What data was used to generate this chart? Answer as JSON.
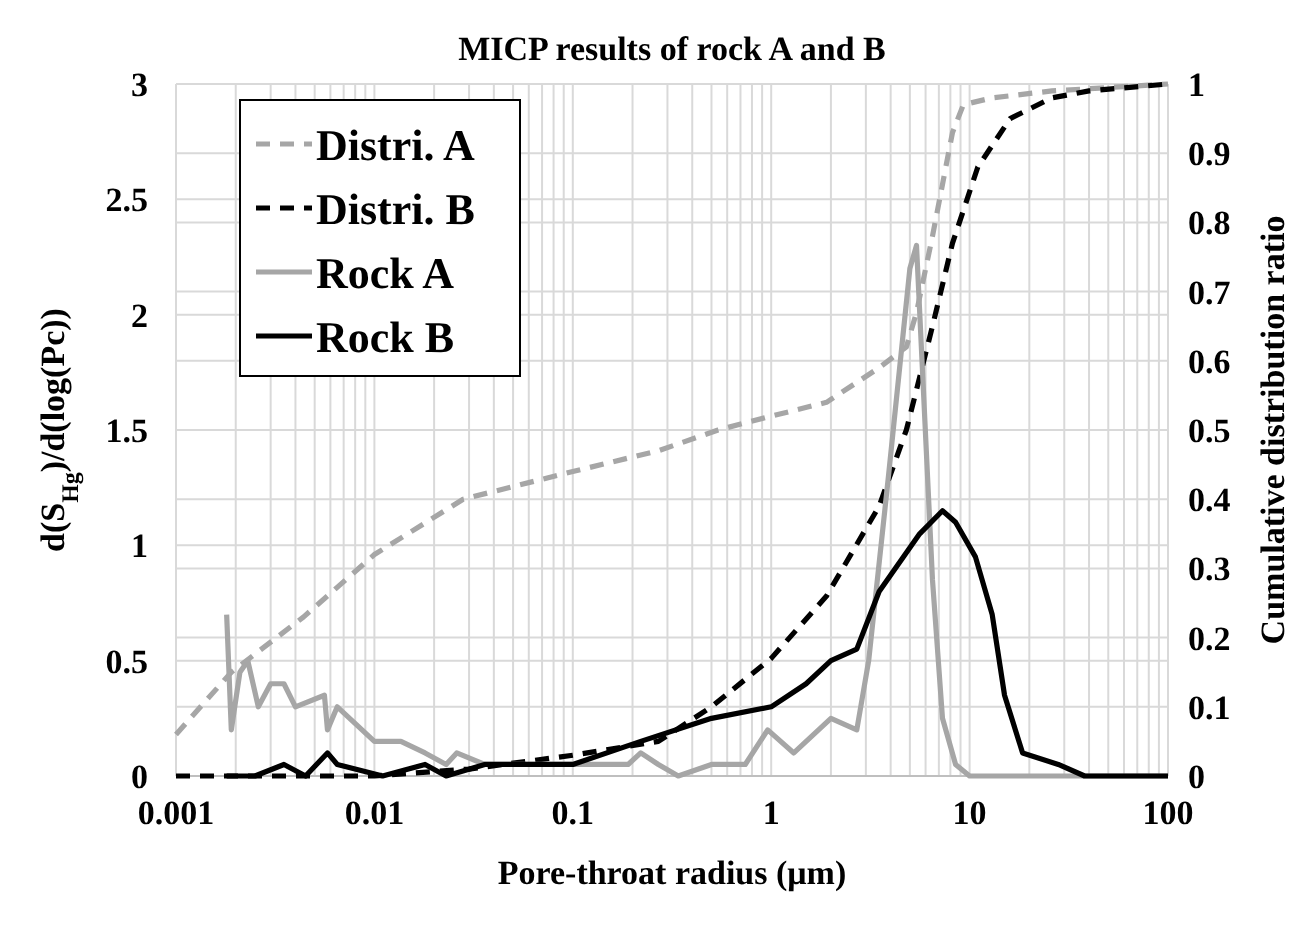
{
  "chart_data": {
    "type": "line",
    "title": "MICP results of rock A and B",
    "xlabel": "Pore-throat radius (μm)",
    "ylabel": "d(S$_{Hg}$)/d(log(Pc))",
    "y2label": "Cumulative distribution ratio",
    "log": "x",
    "grid": true,
    "legend": "top left",
    "xlim": [
      0.001,
      100
    ],
    "xticks": [
      0.001,
      {
        "value": 0.002,
        "label": null
      },
      {
        "value": 0.003,
        "label": null
      },
      {
        "value": 0.004,
        "label": null
      },
      {
        "value": 0.005,
        "label": null
      },
      {
        "value": 0.006,
        "label": null
      },
      {
        "value": 0.007,
        "label": null
      },
      {
        "value": 0.008,
        "label": null
      },
      {
        "value": 0.009,
        "label": null
      },
      0.01,
      {
        "value": 0.02,
        "label": null
      },
      {
        "value": 0.03,
        "label": null
      },
      {
        "value": 0.04,
        "label": null
      },
      {
        "value": 0.05,
        "label": null
      },
      {
        "value": 0.06,
        "label": null
      },
      {
        "value": 0.07,
        "label": null
      },
      {
        "value": 0.08,
        "label": null
      },
      {
        "value": 0.09,
        "label": null
      },
      0.1,
      {
        "value": 0.2,
        "label": null
      },
      {
        "value": 0.3,
        "label": null
      },
      {
        "value": 0.4,
        "label": null
      },
      {
        "value": 0.5,
        "label": null
      },
      {
        "value": 0.6,
        "label": null
      },
      {
        "value": 0.7,
        "label": null
      },
      {
        "value": 0.8,
        "label": null
      },
      {
        "value": 0.9,
        "label": null
      },
      1,
      {
        "value": 2,
        "label": null
      },
      {
        "value": 3,
        "label": null
      },
      {
        "value": 4,
        "label": null
      },
      {
        "value": 5,
        "label": null
      },
      {
        "value": 6,
        "label": null
      },
      {
        "value": 7,
        "label": null
      },
      {
        "value": 8,
        "label": null
      },
      {
        "value": 9,
        "label": null
      },
      10,
      {
        "value": 20,
        "label": null
      },
      {
        "value": 30,
        "label": null
      },
      {
        "value": 40,
        "label": null
      },
      {
        "value": 50,
        "label": null
      },
      {
        "value": 60,
        "label": null
      },
      {
        "value": 70,
        "label": null
      },
      {
        "value": 80,
        "label": null
      },
      {
        "value": 90,
        "label": null
      },
      100
    ],
    "ylim": [
      0,
      3
    ],
    "yticks": [
      0,
      0.5,
      1,
      1.5,
      2,
      2.5,
      3
    ],
    "y2lim": [
      0,
      1
    ],
    "y2ticks": [
      0,
      0.1,
      0.2,
      0.3,
      0.4,
      0.5,
      0.6,
      0.7,
      0.8,
      0.9,
      1
    ],
    "series": [
      {
        "name": "Distri. A",
        "color": "#a6a6a6",
        "axis": "y2",
        "line_style": "dashed",
        "x": [
          0.001,
          0.0019,
          0.0044,
          0.01,
          0.028,
          0.1,
          0.27,
          0.54,
          1,
          1.9,
          3.5,
          4.8,
          5.4,
          6.5,
          8.2,
          9.3,
          13,
          26,
          100
        ],
        "values": [
          0.06,
          0.15,
          0.23,
          0.32,
          0.4,
          0.44,
          0.47,
          0.5,
          0.52,
          0.54,
          0.59,
          0.62,
          0.67,
          0.78,
          0.93,
          0.97,
          0.98,
          0.99,
          1
        ]
      },
      {
        "name": "Distri. B",
        "color": "#000000",
        "axis": "y2",
        "line_style": "dashed",
        "x": [
          0.001,
          0.003,
          0.01,
          0.03,
          0.1,
          0.27,
          0.5,
          1,
          1.9,
          3.5,
          4.8,
          6.5,
          8.2,
          11,
          16,
          26,
          40,
          100
        ],
        "values": [
          0,
          0,
          0,
          0.01,
          0.03,
          0.05,
          0.1,
          0.17,
          0.26,
          0.39,
          0.5,
          0.65,
          0.77,
          0.88,
          0.95,
          0.98,
          0.99,
          1
        ]
      },
      {
        "name": "Rock A",
        "color": "#a6a6a6",
        "axis": "y",
        "line_style": "solid",
        "x": [
          0.0018,
          0.0019,
          0.0021,
          0.0023,
          0.0026,
          0.003,
          0.0035,
          0.004,
          0.0056,
          0.0058,
          0.0065,
          0.01,
          0.0136,
          0.018,
          0.023,
          0.026,
          0.036,
          0.048,
          0.065,
          0.1,
          0.19,
          0.22,
          0.27,
          0.34,
          0.5,
          0.74,
          0.96,
          1.3,
          2,
          2.7,
          3.1,
          3.9,
          5,
          5.4,
          6.5,
          7.3,
          8.5,
          10,
          20,
          50,
          100
        ],
        "values": [
          0.7,
          0.2,
          0.45,
          0.5,
          0.3,
          0.4,
          0.4,
          0.3,
          0.35,
          0.2,
          0.3,
          0.15,
          0.15,
          0.1,
          0.05,
          0.1,
          0.05,
          0.05,
          0.05,
          0.05,
          0.05,
          0.1,
          0.05,
          0,
          0.05,
          0.05,
          0.2,
          0.1,
          0.25,
          0.2,
          0.5,
          1.3,
          2.2,
          2.3,
          0.85,
          0.25,
          0.05,
          0,
          0,
          0,
          0
        ]
      },
      {
        "name": "Rock B",
        "color": "#000000",
        "axis": "y",
        "line_style": "solid",
        "x": [
          0.0018,
          0.0025,
          0.0035,
          0.0045,
          0.0058,
          0.0065,
          0.011,
          0.018,
          0.023,
          0.036,
          0.1,
          0.22,
          0.5,
          1,
          1.5,
          2,
          2.7,
          3.5,
          5.6,
          7.3,
          8.5,
          10.7,
          13,
          15,
          18.5,
          28,
          38,
          100
        ],
        "values": [
          0,
          0,
          0.05,
          0,
          0.1,
          0.05,
          0,
          0.05,
          0,
          0.05,
          0.05,
          0.15,
          0.25,
          0.3,
          0.4,
          0.5,
          0.55,
          0.8,
          1.05,
          1.15,
          1.1,
          0.95,
          0.7,
          0.35,
          0.1,
          0.05,
          0,
          0
        ]
      }
    ]
  }
}
